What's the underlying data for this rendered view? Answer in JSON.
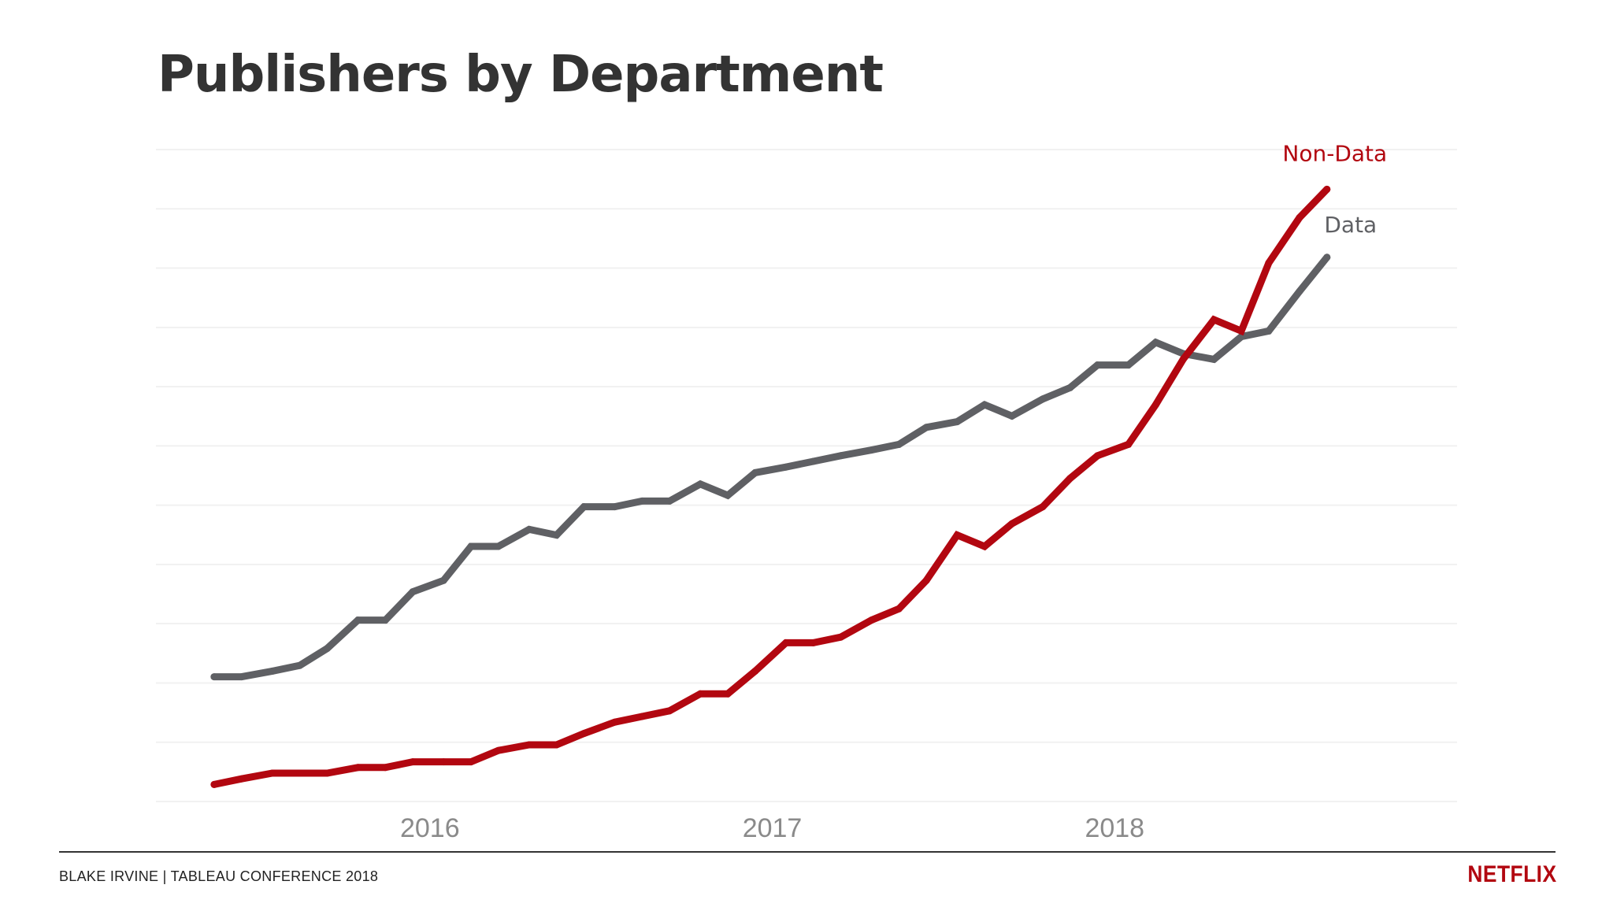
{
  "slide": {
    "title": "Publishers by Department",
    "footer": "BLAKE IRVINE | TABLEAU CONFERENCE 2018",
    "brand": "NETFLIX",
    "brand_color": "#b20710"
  },
  "chart_data": {
    "type": "line",
    "title": "Publishers by Department",
    "xlabel": "",
    "ylabel": "",
    "x_tick_labels": [
      "2016",
      "2017",
      "2018"
    ],
    "x_ticks": [
      2016.0,
      2017.0,
      2018.0
    ],
    "xlim": [
      2015.2,
      2019.0
    ],
    "ylim": [
      0,
      115
    ],
    "gridlines": true,
    "legend": "inline labels at line ends",
    "series": [
      {
        "name": "Data",
        "color": "#5f6064",
        "x": [
          2015.37,
          2015.45,
          2015.54,
          2015.62,
          2015.7,
          2015.79,
          2015.87,
          2015.95,
          2016.04,
          2016.12,
          2016.2,
          2016.29,
          2016.37,
          2016.45,
          2016.54,
          2016.62,
          2016.7,
          2016.79,
          2016.87,
          2016.95,
          2017.04,
          2017.12,
          2017.2,
          2017.29,
          2017.37,
          2017.45,
          2017.54,
          2017.62,
          2017.7,
          2017.79,
          2017.87,
          2017.95,
          2018.04,
          2018.12,
          2018.2,
          2018.29,
          2018.37,
          2018.45,
          2018.54,
          2018.62
        ],
        "values": [
          22,
          22,
          23,
          24,
          27,
          32,
          32,
          37,
          39,
          45,
          45,
          48,
          47,
          52,
          52,
          53,
          53,
          56,
          54,
          58,
          59,
          60,
          61,
          62,
          63,
          66,
          67,
          70,
          68,
          71,
          73,
          77,
          77,
          81,
          79,
          78,
          82,
          83,
          90,
          96
        ]
      },
      {
        "name": "Non-Data",
        "color": "#b20710",
        "x": [
          2015.37,
          2015.45,
          2015.54,
          2015.62,
          2015.7,
          2015.79,
          2015.87,
          2015.95,
          2016.04,
          2016.12,
          2016.2,
          2016.29,
          2016.37,
          2016.45,
          2016.54,
          2016.62,
          2016.7,
          2016.79,
          2016.87,
          2016.95,
          2017.04,
          2017.12,
          2017.2,
          2017.29,
          2017.37,
          2017.45,
          2017.54,
          2017.62,
          2017.7,
          2017.79,
          2017.87,
          2017.95,
          2018.04,
          2018.12,
          2018.2,
          2018.29,
          2018.37,
          2018.45,
          2018.54,
          2018.62
        ],
        "values": [
          3,
          4,
          5,
          5,
          5,
          6,
          6,
          7,
          7,
          7,
          9,
          10,
          10,
          12,
          14,
          15,
          16,
          19,
          19,
          23,
          28,
          28,
          29,
          32,
          34,
          39,
          47,
          45,
          49,
          52,
          57,
          61,
          63,
          70,
          78,
          85,
          83,
          95,
          103,
          108
        ]
      }
    ]
  }
}
